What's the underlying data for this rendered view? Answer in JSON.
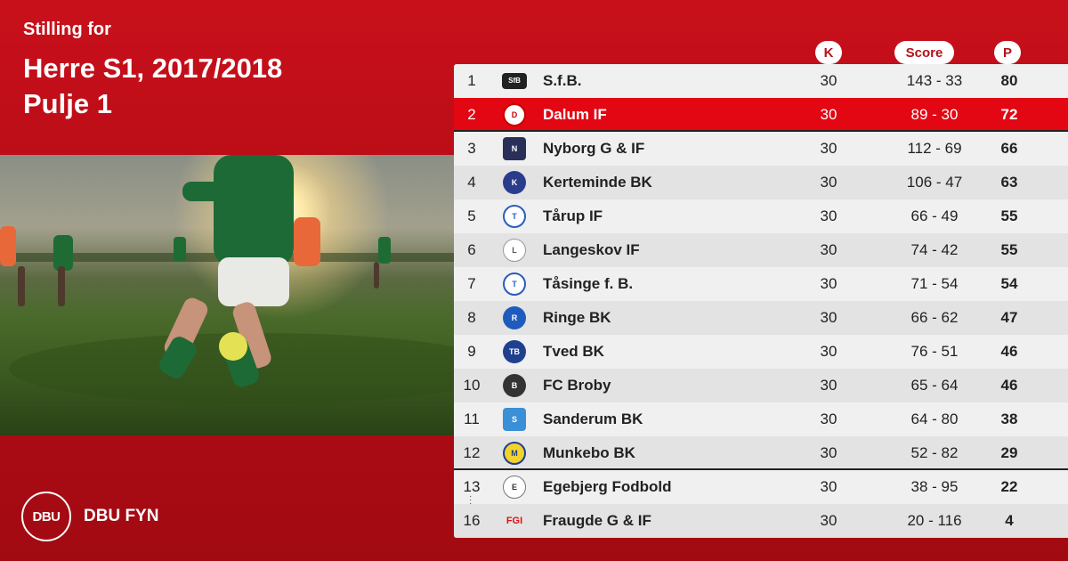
{
  "header": {
    "subtitle": "Stilling for",
    "title_line1": "Herre S1, 2017/2018",
    "title_line2": "Pulje 1"
  },
  "columns": {
    "k": "K",
    "score": "Score",
    "p": "P"
  },
  "brand": {
    "logo_text": "DBU",
    "name": "DBU FYN"
  },
  "colors": {
    "brand_red": "#c8101b",
    "highlight_row": "#e30613",
    "header_text": "#b5101a"
  },
  "standings": [
    {
      "rank": "1",
      "team": "S.f.B.",
      "k": "30",
      "score": "143 - 33",
      "p": "80",
      "logo": "sfb-logo"
    },
    {
      "rank": "2",
      "team": "Dalum IF",
      "k": "30",
      "score": "89 - 30",
      "p": "72",
      "logo": "dalum-logo"
    },
    {
      "rank": "3",
      "team": "Nyborg G & IF",
      "k": "30",
      "score": "112 - 69",
      "p": "66",
      "logo": "nyborg-logo"
    },
    {
      "rank": "4",
      "team": "Kerteminde BK",
      "k": "30",
      "score": "106 - 47",
      "p": "63",
      "logo": "kerteminde-logo"
    },
    {
      "rank": "5",
      "team": "Tårup IF",
      "k": "30",
      "score": "66 - 49",
      "p": "55",
      "logo": "tarup-logo"
    },
    {
      "rank": "6",
      "team": "Langeskov IF",
      "k": "30",
      "score": "74 - 42",
      "p": "55",
      "logo": "langeskov-logo"
    },
    {
      "rank": "7",
      "team": "Tåsinge  f. B.",
      "k": "30",
      "score": "71 - 54",
      "p": "54",
      "logo": "tasinge-logo"
    },
    {
      "rank": "8",
      "team": "Ringe BK",
      "k": "30",
      "score": "66 - 62",
      "p": "47",
      "logo": "ringe-logo"
    },
    {
      "rank": "9",
      "team": "Tved BK",
      "k": "30",
      "score": "76 - 51",
      "p": "46",
      "logo": "tved-logo"
    },
    {
      "rank": "10",
      "team": "FC Broby",
      "k": "30",
      "score": "65 - 64",
      "p": "46",
      "logo": "broby-logo"
    },
    {
      "rank": "11",
      "team": "Sanderum BK",
      "k": "30",
      "score": "64 - 80",
      "p": "38",
      "logo": "sanderum-logo"
    },
    {
      "rank": "12",
      "team": "Munkebo BK",
      "k": "30",
      "score": "52 - 82",
      "p": "29",
      "logo": "munkebo-logo"
    },
    {
      "rank": "13",
      "team": "Egebjerg Fodbold",
      "k": "30",
      "score": "38 - 95",
      "p": "22",
      "logo": "egebjerg-logo"
    },
    {
      "rank": "16",
      "team": "Fraugde G & IF",
      "k": "30",
      "score": "20 - 116",
      "p": "4",
      "logo": "fraugde-logo"
    }
  ]
}
